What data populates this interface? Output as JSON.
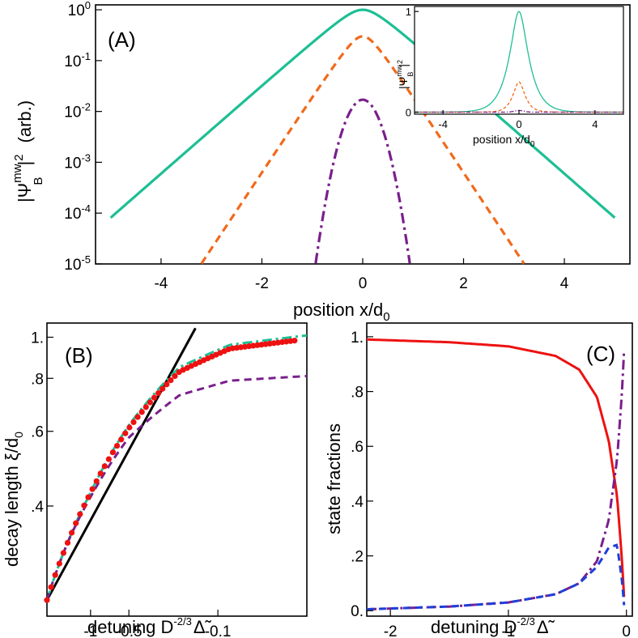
{
  "chart_data": [
    {
      "panel": "(A)",
      "type": "line",
      "xlabel": "position x/d₀",
      "ylabel": "|Ψᴮᵐʷ|² (arb.)",
      "ylog": true,
      "xlim": [
        -5.3,
        5.3
      ],
      "ylim": [
        1e-05,
        1.25
      ],
      "xticks": [
        -4,
        -2,
        0,
        2,
        4
      ],
      "yticks": [
        1,
        0.1,
        0.01,
        0.001,
        0.0001,
        1e-05
      ],
      "ytick_labels": [
        "10⁰",
        "10⁻¹",
        "10⁻²",
        "10⁻³",
        "10⁻⁴",
        "10⁻⁵"
      ],
      "series": [
        {
          "style": "solid",
          "color": "#1dbf94",
          "peak": 1.0,
          "x": [
            -5,
            -3,
            -1.5,
            -0.5,
            0,
            0.5,
            1.5,
            3,
            5
          ],
          "y": [
            3.2e-05,
            0.0012,
            0.017,
            0.16,
            1.0,
            0.16,
            0.017,
            0.0012,
            3.2e-05
          ]
        },
        {
          "style": "dashed",
          "color": "#f06a1c",
          "peak": 0.3,
          "x": [
            -3,
            -2,
            -1,
            -0.5,
            0,
            0.5,
            1,
            2,
            3
          ],
          "y": [
            1e-05,
            0.00025,
            0.007,
            0.05,
            0.3,
            0.05,
            0.007,
            0.00025,
            1e-05
          ]
        },
        {
          "style": "dashdot",
          "color": "#7a1f8c",
          "peak": 0.017,
          "x": [
            -0.85,
            -0.6,
            -0.3,
            0,
            0.3,
            0.6,
            0.85
          ],
          "y": [
            1e-05,
            0.00012,
            0.0025,
            0.017,
            0.0025,
            0.00012,
            1e-05
          ]
        }
      ],
      "inset": {
        "xlabel": "position x/d₀",
        "ylabel": "|Ψᴮᵐʷ|²",
        "xlim": [
          -5.5,
          5.5
        ],
        "ylim": [
          -0.02,
          1.05
        ],
        "xticks": [
          -4,
          0,
          4
        ],
        "yticks": [
          0,
          1
        ]
      }
    },
    {
      "panel": "(B)",
      "type": "line",
      "xlabel": "detuning D⁻²ᐟ³ Δ̃",
      "ylabel": "decay length ξ/d₀",
      "xticks": [
        -1,
        -0.5,
        -0.1
      ],
      "xtick_labels": [
        "-1",
        "-0.5",
        "-0.1"
      ],
      "yticks": [
        0.4,
        0.6,
        0.8,
        1.0
      ],
      "ytick_labels": [
        ".4",
        ".6",
        ".8",
        "1."
      ],
      "series": [
        {
          "style": "solid",
          "color": "#000000",
          "x": [
            -2.2,
            -0.15
          ],
          "y": [
            0.24,
            1.05
          ]
        },
        {
          "style": "dashdot",
          "color": "#1dbf94",
          "x": [
            -2.2,
            -1.5,
            -1,
            -0.5,
            -0.2,
            -0.08,
            -0.02
          ],
          "y": [
            0.24,
            0.33,
            0.43,
            0.62,
            0.85,
            0.96,
            1.01
          ]
        },
        {
          "style": "dashed",
          "color": "#7a1f8c",
          "x": [
            -2.2,
            -1.5,
            -1,
            -0.5,
            -0.2,
            -0.08,
            -0.02
          ],
          "y": [
            0.24,
            0.33,
            0.42,
            0.58,
            0.73,
            0.79,
            0.81
          ]
        },
        {
          "style": "dots",
          "color": "#ee1111",
          "x": [
            -2.2,
            -1.5,
            -1,
            -0.5,
            -0.2,
            -0.08,
            -0.02
          ],
          "y": [
            0.24,
            0.33,
            0.43,
            0.61,
            0.83,
            0.94,
            0.99
          ]
        }
      ]
    },
    {
      "panel": "(C)",
      "type": "line",
      "xlabel": "detuning D⁻²ᐟ³ Δ̃",
      "ylabel": "state fractions",
      "xlim": [
        -2.2,
        0.05
      ],
      "ylim": [
        -0.02,
        1.05
      ],
      "xticks": [
        -2,
        -1,
        0
      ],
      "yticks": [
        0,
        0.2,
        0.4,
        0.6,
        0.8,
        1.0
      ],
      "ytick_labels": [
        "0.",
        ".2",
        ".4",
        ".6",
        ".8",
        "1."
      ],
      "series": [
        {
          "style": "solid",
          "color": "#ee1111",
          "x": [
            -2.2,
            -1.5,
            -1.0,
            -0.6,
            -0.4,
            -0.25,
            -0.15,
            -0.08,
            -0.04,
            -0.02
          ],
          "y": [
            0.99,
            0.98,
            0.965,
            0.93,
            0.88,
            0.78,
            0.62,
            0.42,
            0.2,
            0.05
          ]
        },
        {
          "style": "dashdot",
          "color": "#7a1f8c",
          "x": [
            -2.2,
            -1.5,
            -1.0,
            -0.6,
            -0.4,
            -0.25,
            -0.15,
            -0.08,
            -0.04,
            -0.02
          ],
          "y": [
            0.005,
            0.015,
            0.03,
            0.06,
            0.1,
            0.18,
            0.33,
            0.55,
            0.78,
            0.95
          ]
        },
        {
          "style": "dashed",
          "color": "#1f3fd8",
          "x": [
            -2.2,
            -1.5,
            -1.0,
            -0.6,
            -0.4,
            -0.25,
            -0.15,
            -0.08,
            -0.04,
            -0.02
          ],
          "y": [
            0.005,
            0.015,
            0.03,
            0.06,
            0.1,
            0.16,
            0.23,
            0.24,
            0.12,
            0.02
          ]
        }
      ]
    }
  ],
  "labels": {
    "a_panel": "(A)",
    "b_panel": "(B)",
    "c_panel": "(C)",
    "a_xlabel": "position x/d",
    "a_xlabel_sub": "0",
    "a_ylabel": "|Ψ",
    "a_ylabel_sup": "mw",
    "a_ylabel_sub": "B",
    "a_ylabel_tail": "|",
    "a_ylabel_pow": "2",
    "a_ylabel_unit": "(arb.)",
    "inset_xlabel": "position x/d",
    "inset_xlabel_sub": "0",
    "b_xlabel": "detuning D",
    "b_xlabel_sup": "-2/3",
    "b_xlabel_sym": "Δ̃",
    "b_ylabel": "decay length ξ/d",
    "b_ylabel_sub": "0",
    "c_xlabel": "detuning D",
    "c_xlabel_sup": "-2/3",
    "c_xlabel_sym": "Δ̃",
    "c_ylabel": "state fractions"
  }
}
